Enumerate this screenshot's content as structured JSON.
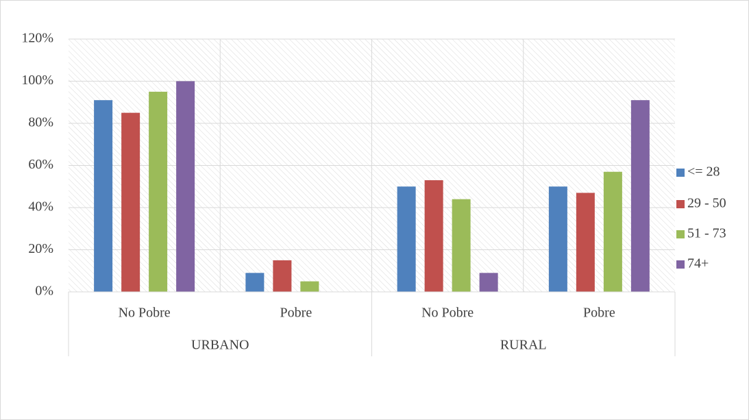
{
  "chart_data": {
    "type": "bar",
    "category_groups": [
      {
        "name": "URBANO",
        "categories": [
          "No Pobre",
          "Pobre"
        ]
      },
      {
        "name": "RURAL",
        "categories": [
          "No Pobre",
          "Pobre"
        ]
      }
    ],
    "series": [
      {
        "name": "<= 28",
        "color": "#4f81bd",
        "values": [
          91,
          9,
          50,
          50
        ]
      },
      {
        "name": "29 - 50",
        "color": "#c0504d",
        "values": [
          85,
          15,
          53,
          47
        ]
      },
      {
        "name": "51 - 73",
        "color": "#9bbb59",
        "values": [
          95,
          5,
          44,
          57
        ]
      },
      {
        "name": "74+",
        "color": "#8064a2",
        "values": [
          100,
          0,
          9,
          91
        ]
      }
    ],
    "ylim": [
      0,
      120
    ],
    "yticks": [
      {
        "value": 0,
        "label": "0%"
      },
      {
        "value": 20,
        "label": "20%"
      },
      {
        "value": 40,
        "label": "40%"
      },
      {
        "value": 60,
        "label": "60%"
      },
      {
        "value": 80,
        "label": "80%"
      },
      {
        "value": 100,
        "label": "100%"
      },
      {
        "value": 120,
        "label": "120%"
      }
    ],
    "grid": true,
    "legend": "right"
  }
}
